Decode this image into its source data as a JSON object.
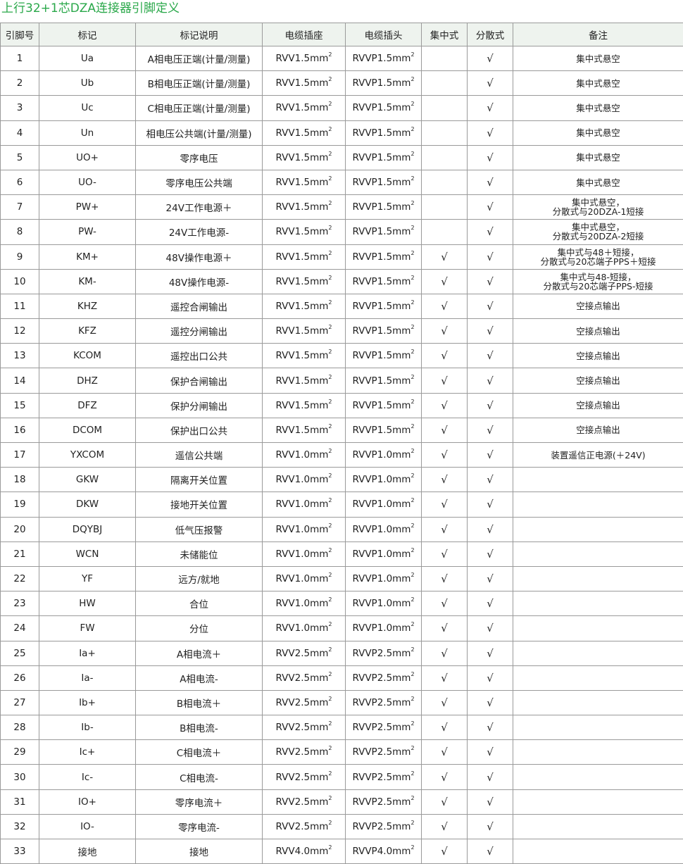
{
  "title": "上行32+1芯DZA连接器引脚定义",
  "check_mark": "√",
  "colors": {
    "title": "#2aa84a",
    "header_bg": "#eef3ee",
    "border": "#9a9a9a"
  },
  "headers": [
    "引脚号",
    "标记",
    "标记说明",
    "电缆插座",
    "电缆插头",
    "集中式",
    "分散式",
    "备注"
  ],
  "rows": [
    {
      "pin": "1",
      "mark": "Ua",
      "desc": "A相电压正端(计量/测量)",
      "socket": "RVV1.5mm",
      "plug": "RVVP1.5mm",
      "central": false,
      "distributed": true,
      "note": "集中式悬空"
    },
    {
      "pin": "2",
      "mark": "Ub",
      "desc": "B相电压正端(计量/测量)",
      "socket": "RVV1.5mm",
      "plug": "RVVP1.5mm",
      "central": false,
      "distributed": true,
      "note": "集中式悬空"
    },
    {
      "pin": "3",
      "mark": "Uc",
      "desc": "C相电压正端(计量/测量)",
      "socket": "RVV1.5mm",
      "plug": "RVVP1.5mm",
      "central": false,
      "distributed": true,
      "note": "集中式悬空"
    },
    {
      "pin": "4",
      "mark": "Un",
      "desc": "相电压公共端(计量/测量)",
      "socket": "RVV1.5mm",
      "plug": "RVVP1.5mm",
      "central": false,
      "distributed": true,
      "note": "集中式悬空"
    },
    {
      "pin": "5",
      "mark": "UO+",
      "desc": "零序电压",
      "socket": "RVV1.5mm",
      "plug": "RVVP1.5mm",
      "central": false,
      "distributed": true,
      "note": "集中式悬空"
    },
    {
      "pin": "6",
      "mark": "UO-",
      "desc": "零序电压公共端",
      "socket": "RVV1.5mm",
      "plug": "RVVP1.5mm",
      "central": false,
      "distributed": true,
      "note": "集中式悬空"
    },
    {
      "pin": "7",
      "mark": "PW+",
      "desc": "24V工作电源＋",
      "socket": "RVV1.5mm",
      "plug": "RVVP1.5mm",
      "central": false,
      "distributed": true,
      "note": "集中式悬空，\n分散式与20DZA-1短接"
    },
    {
      "pin": "8",
      "mark": "PW-",
      "desc": "24V工作电源-",
      "socket": "RVV1.5mm",
      "plug": "RVVP1.5mm",
      "central": false,
      "distributed": true,
      "note": "集中式悬空，\n分散式与20DZA-2短接"
    },
    {
      "pin": "9",
      "mark": "KM+",
      "desc": "48V操作电源＋",
      "socket": "RVV1.5mm",
      "plug": "RVVP1.5mm",
      "central": true,
      "distributed": true,
      "note": "集中式与48＋短接，\n分散式与20芯端子PPS＋短接"
    },
    {
      "pin": "10",
      "mark": "KM-",
      "desc": "48V操作电源-",
      "socket": "RVV1.5mm",
      "plug": "RVVP1.5mm",
      "central": true,
      "distributed": true,
      "note": "集中式与48-短接，\n分散式与20芯端子PPS-短接"
    },
    {
      "pin": "11",
      "mark": "KHZ",
      "desc": "遥控合闸输出",
      "socket": "RVV1.5mm",
      "plug": "RVVP1.5mm",
      "central": true,
      "distributed": true,
      "note": "空接点输出"
    },
    {
      "pin": "12",
      "mark": "KFZ",
      "desc": "遥控分闸输出",
      "socket": "RVV1.5mm",
      "plug": "RVVP1.5mm",
      "central": true,
      "distributed": true,
      "note": "空接点输出"
    },
    {
      "pin": "13",
      "mark": "KCOM",
      "desc": "遥控出口公共",
      "socket": "RVV1.5mm",
      "plug": "RVVP1.5mm",
      "central": true,
      "distributed": true,
      "note": "空接点输出"
    },
    {
      "pin": "14",
      "mark": "DHZ",
      "desc": "保护合闸输出",
      "socket": "RVV1.5mm",
      "plug": "RVVP1.5mm",
      "central": true,
      "distributed": true,
      "note": "空接点输出"
    },
    {
      "pin": "15",
      "mark": "DFZ",
      "desc": "保护分闸输出",
      "socket": "RVV1.5mm",
      "plug": "RVVP1.5mm",
      "central": true,
      "distributed": true,
      "note": "空接点输出"
    },
    {
      "pin": "16",
      "mark": "DCOM",
      "desc": "保护出口公共",
      "socket": "RVV1.5mm",
      "plug": "RVVP1.5mm",
      "central": true,
      "distributed": true,
      "note": "空接点输出"
    },
    {
      "pin": "17",
      "mark": "YXCOM",
      "desc": "遥信公共端",
      "socket": "RVV1.0mm",
      "plug": "RVVP1.0mm",
      "central": true,
      "distributed": true,
      "note": "装置遥信正电源(＋24V)"
    },
    {
      "pin": "18",
      "mark": "GKW",
      "desc": "隔离开关位置",
      "socket": "RVV1.0mm",
      "plug": "RVVP1.0mm",
      "central": true,
      "distributed": true,
      "note": ""
    },
    {
      "pin": "19",
      "mark": "DKW",
      "desc": "接地开关位置",
      "socket": "RVV1.0mm",
      "plug": "RVVP1.0mm",
      "central": true,
      "distributed": true,
      "note": ""
    },
    {
      "pin": "20",
      "mark": "DQYBJ",
      "desc": "低气压报警",
      "socket": "RVV1.0mm",
      "plug": "RVVP1.0mm",
      "central": true,
      "distributed": true,
      "note": ""
    },
    {
      "pin": "21",
      "mark": "WCN",
      "desc": "未储能位",
      "socket": "RVV1.0mm",
      "plug": "RVVP1.0mm",
      "central": true,
      "distributed": true,
      "note": ""
    },
    {
      "pin": "22",
      "mark": "YF",
      "desc": "远方/就地",
      "socket": "RVV1.0mm",
      "plug": "RVVP1.0mm",
      "central": true,
      "distributed": true,
      "note": ""
    },
    {
      "pin": "23",
      "mark": "HW",
      "desc": "合位",
      "socket": "RVV1.0mm",
      "plug": "RVVP1.0mm",
      "central": true,
      "distributed": true,
      "note": ""
    },
    {
      "pin": "24",
      "mark": "FW",
      "desc": "分位",
      "socket": "RVV1.0mm",
      "plug": "RVVP1.0mm",
      "central": true,
      "distributed": true,
      "note": ""
    },
    {
      "pin": "25",
      "mark": "Ia+",
      "desc": "A相电流＋",
      "socket": "RVV2.5mm",
      "plug": "RVVP2.5mm",
      "central": true,
      "distributed": true,
      "note": ""
    },
    {
      "pin": "26",
      "mark": "Ia-",
      "desc": "A相电流-",
      "socket": "RVV2.5mm",
      "plug": "RVVP2.5mm",
      "central": true,
      "distributed": true,
      "note": ""
    },
    {
      "pin": "27",
      "mark": "Ib+",
      "desc": "B相电流＋",
      "socket": "RVV2.5mm",
      "plug": "RVVP2.5mm",
      "central": true,
      "distributed": true,
      "note": ""
    },
    {
      "pin": "28",
      "mark": "Ib-",
      "desc": "B相电流-",
      "socket": "RVV2.5mm",
      "plug": "RVVP2.5mm",
      "central": true,
      "distributed": true,
      "note": ""
    },
    {
      "pin": "29",
      "mark": "Ic+",
      "desc": "C相电流＋",
      "socket": "RVV2.5mm",
      "plug": "RVVP2.5mm",
      "central": true,
      "distributed": true,
      "note": ""
    },
    {
      "pin": "30",
      "mark": "Ic-",
      "desc": "C相电流-",
      "socket": "RVV2.5mm",
      "plug": "RVVP2.5mm",
      "central": true,
      "distributed": true,
      "note": ""
    },
    {
      "pin": "31",
      "mark": "IO+",
      "desc": "零序电流＋",
      "socket": "RVV2.5mm",
      "plug": "RVVP2.5mm",
      "central": true,
      "distributed": true,
      "note": ""
    },
    {
      "pin": "32",
      "mark": "IO-",
      "desc": "零序电流-",
      "socket": "RVV2.5mm",
      "plug": "RVVP2.5mm",
      "central": true,
      "distributed": true,
      "note": ""
    },
    {
      "pin": "33",
      "mark": "接地",
      "desc": "接地",
      "socket": "RVV4.0mm",
      "plug": "RVVP4.0mm",
      "central": true,
      "distributed": true,
      "note": ""
    }
  ],
  "superscript": "2"
}
